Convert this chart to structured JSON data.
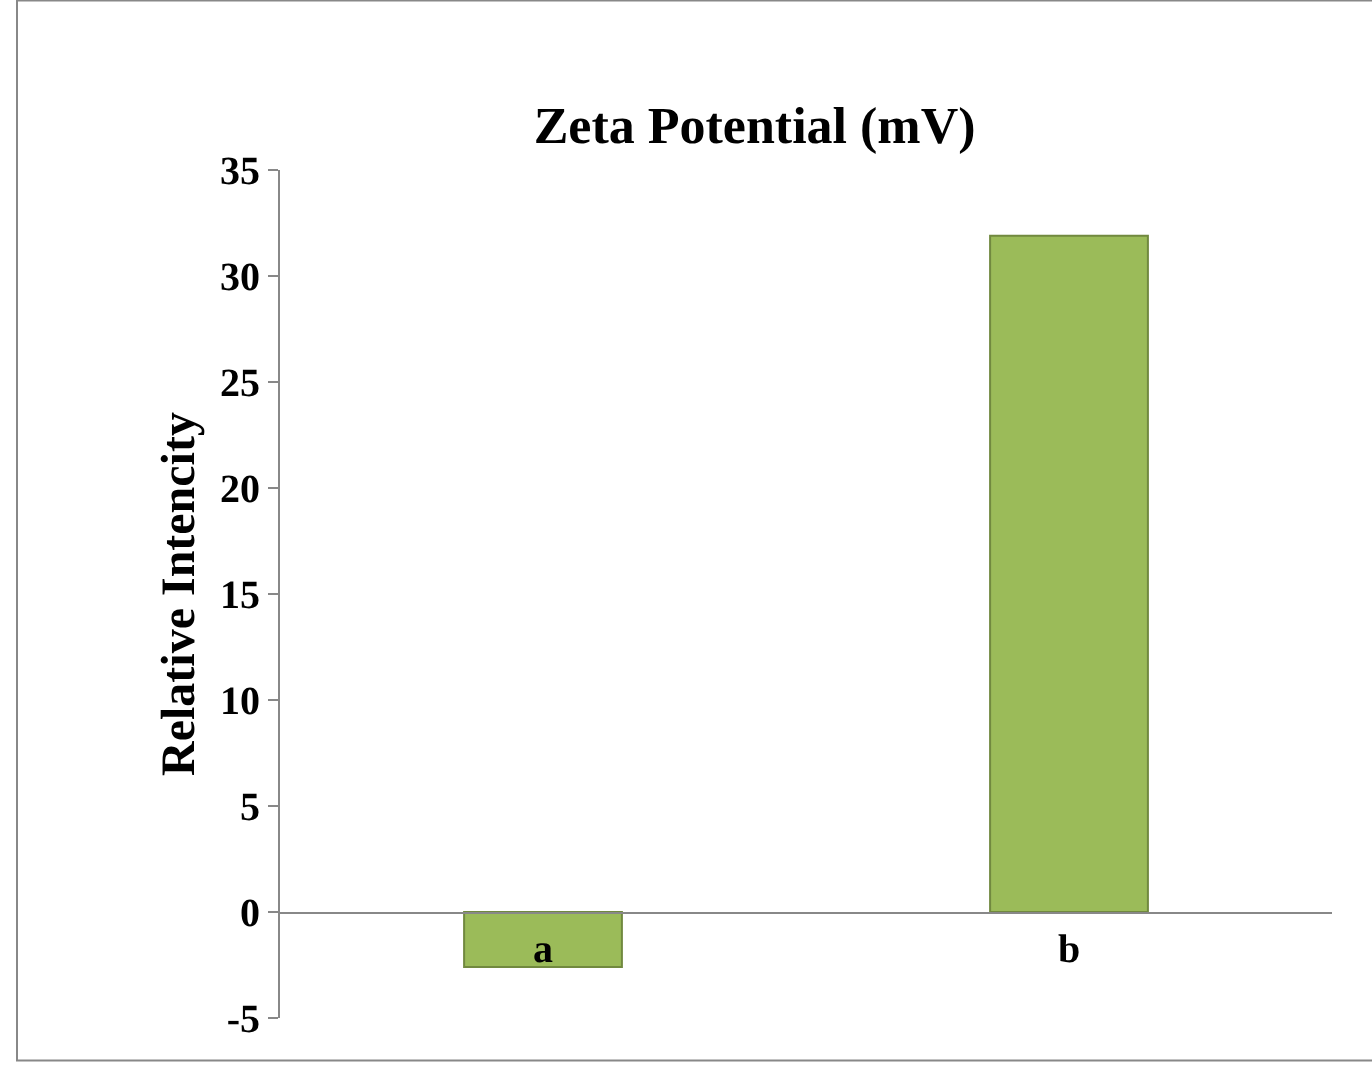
{
  "chart_data": {
    "type": "bar",
    "title": "Zeta Potential (mV)",
    "ylabel": "Relative Intencity",
    "categories": [
      "a",
      "b"
    ],
    "values": [
      -2.6,
      31.9
    ],
    "color": "#9bbb59",
    "ylim": [
      -5,
      35
    ],
    "yticks": [
      -5,
      0,
      5,
      10,
      15,
      20,
      25,
      30,
      35
    ]
  }
}
